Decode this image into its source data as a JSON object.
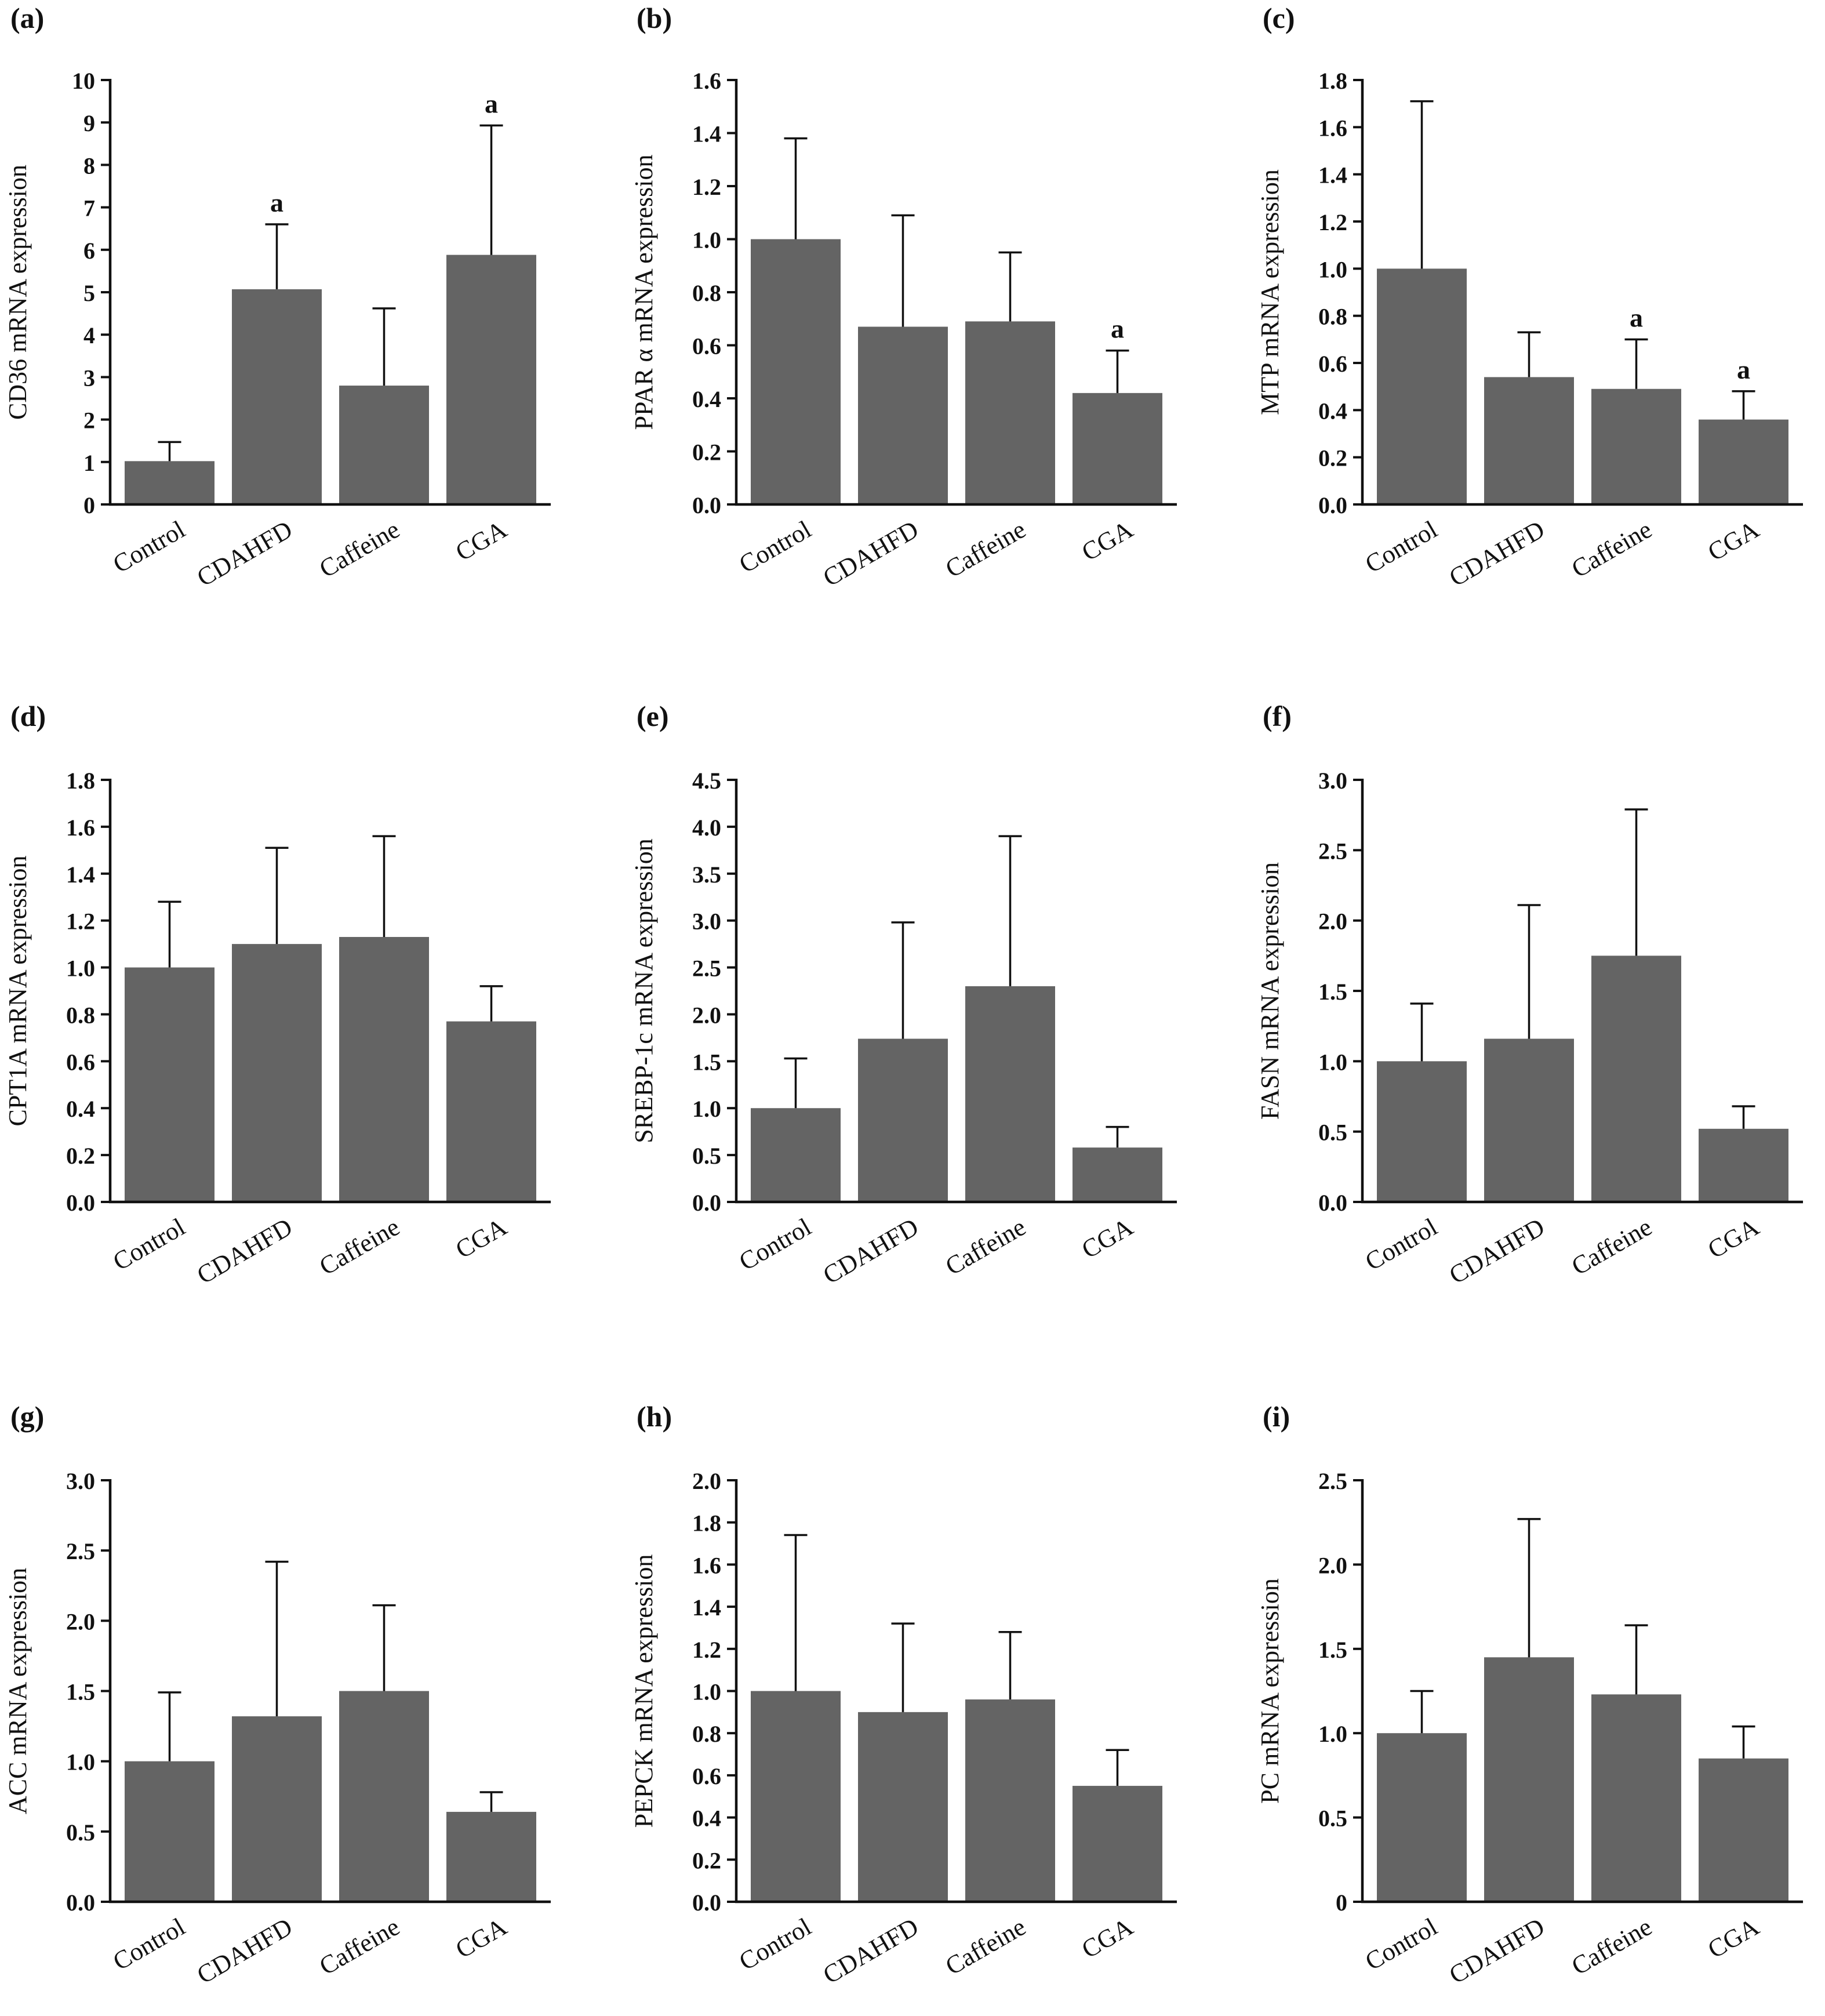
{
  "figure": {
    "bar_color": "#646464",
    "axis_color": "#111111"
  },
  "chart_data": [
    {
      "panel": "(a)",
      "type": "bar",
      "categories": [
        "Control",
        "CDAHFD",
        "Caffeine",
        "CGA"
      ],
      "values": [
        1.02,
        5.07,
        2.8,
        5.88
      ],
      "errors": [
        0.45,
        1.53,
        1.82,
        3.05
      ],
      "annotations": [
        "",
        "a",
        "",
        "a"
      ],
      "title": "",
      "xlabel": "",
      "ylabel": "CD36 mRNA expression",
      "ylim": [
        0,
        10
      ],
      "ticks": [
        0,
        1,
        2,
        3,
        4,
        5,
        6,
        7,
        8,
        9,
        10
      ],
      "tick_labels": [
        "0",
        "1",
        "2",
        "3",
        "4",
        "5",
        "6",
        "7",
        "8",
        "9",
        "10"
      ]
    },
    {
      "panel": "(b)",
      "type": "bar",
      "categories": [
        "Control",
        "CDAHFD",
        "Caffeine",
        "CGA"
      ],
      "values": [
        1.0,
        0.67,
        0.69,
        0.42
      ],
      "errors": [
        0.38,
        0.42,
        0.26,
        0.16
      ],
      "annotations": [
        "",
        "",
        "",
        "a"
      ],
      "title": "",
      "xlabel": "",
      "ylabel": "PPAR α mRNA expression",
      "ylim": [
        0,
        1.6
      ],
      "ticks": [
        0,
        0.2,
        0.4,
        0.6,
        0.8,
        1.0,
        1.2,
        1.4,
        1.6
      ],
      "tick_labels": [
        "0.0",
        "0.2",
        "0.4",
        "0.6",
        "0.8",
        "1.0",
        "1.2",
        "1.4",
        "1.6"
      ]
    },
    {
      "panel": "(c)",
      "type": "bar",
      "categories": [
        "Control",
        "CDAHFD",
        "Caffeine",
        "CGA"
      ],
      "values": [
        1.0,
        0.54,
        0.49,
        0.36
      ],
      "errors": [
        0.71,
        0.19,
        0.21,
        0.12
      ],
      "annotations": [
        "",
        "",
        "a",
        "a"
      ],
      "title": "",
      "xlabel": "",
      "ylabel": "MTP mRNA expression",
      "ylim": [
        0,
        1.8
      ],
      "ticks": [
        0,
        0.2,
        0.4,
        0.6,
        0.8,
        1.0,
        1.2,
        1.4,
        1.6,
        1.8
      ],
      "tick_labels": [
        "0.0",
        "0.2",
        "0.4",
        "0.6",
        "0.8",
        "1.0",
        "1.2",
        "1.4",
        "1.6",
        "1.8"
      ]
    },
    {
      "panel": "(d)",
      "type": "bar",
      "categories": [
        "Control",
        "CDAHFD",
        "Caffeine",
        "CGA"
      ],
      "values": [
        1.0,
        1.1,
        1.13,
        0.77
      ],
      "errors": [
        0.28,
        0.41,
        0.43,
        0.15
      ],
      "annotations": [
        "",
        "",
        "",
        ""
      ],
      "title": "",
      "xlabel": "",
      "ylabel": "CPT1A mRNA expression",
      "ylim": [
        0,
        1.8
      ],
      "ticks": [
        0,
        0.2,
        0.4,
        0.6,
        0.8,
        1.0,
        1.2,
        1.4,
        1.6,
        1.8
      ],
      "tick_labels": [
        "0.0",
        "0.2",
        "0.4",
        "0.6",
        "0.8",
        "1.0",
        "1.2",
        "1.4",
        "1.6",
        "1.8"
      ]
    },
    {
      "panel": "(e)",
      "type": "bar",
      "categories": [
        "Control",
        "CDAHFD",
        "Caffeine",
        "CGA"
      ],
      "values": [
        1.0,
        1.74,
        2.3,
        0.58
      ],
      "errors": [
        0.53,
        1.24,
        1.6,
        0.22
      ],
      "annotations": [
        "",
        "",
        "",
        ""
      ],
      "title": "",
      "xlabel": "",
      "ylabel": "SREBP-1c mRNA expression",
      "ylim": [
        0,
        4.5
      ],
      "ticks": [
        0,
        0.5,
        1.0,
        1.5,
        2.0,
        2.5,
        3.0,
        3.5,
        4.0,
        4.5
      ],
      "tick_labels": [
        "0.0",
        "0.5",
        "1.0",
        "1.5",
        "2.0",
        "2.5",
        "3.0",
        "3.5",
        "4.0",
        "4.5"
      ]
    },
    {
      "panel": "(f)",
      "type": "bar",
      "categories": [
        "Control",
        "CDAHFD",
        "Caffeine",
        "CGA"
      ],
      "values": [
        1.0,
        1.16,
        1.75,
        0.52
      ],
      "errors": [
        0.41,
        0.95,
        1.04,
        0.16
      ],
      "annotations": [
        "",
        "",
        "",
        ""
      ],
      "title": "",
      "xlabel": "",
      "ylabel": "FASN mRNA expression",
      "ylim": [
        0,
        3.0
      ],
      "ticks": [
        0,
        0.5,
        1.0,
        1.5,
        2.0,
        2.5,
        3.0
      ],
      "tick_labels": [
        "0.0",
        "0.5",
        "1.0",
        "1.5",
        "2.0",
        "2.5",
        "3.0"
      ]
    },
    {
      "panel": "(g)",
      "type": "bar",
      "categories": [
        "Control",
        "CDAHFD",
        "Caffeine",
        "CGA"
      ],
      "values": [
        1.0,
        1.32,
        1.5,
        0.64
      ],
      "errors": [
        0.49,
        1.1,
        0.61,
        0.14
      ],
      "annotations": [
        "",
        "",
        "",
        ""
      ],
      "title": "",
      "xlabel": "",
      "ylabel": "ACC mRNA expression",
      "ylim": [
        0,
        3.0
      ],
      "ticks": [
        0,
        0.5,
        1.0,
        1.5,
        2.0,
        2.5,
        3.0
      ],
      "tick_labels": [
        "0.0",
        "0.5",
        "1.0",
        "1.5",
        "2.0",
        "2.5",
        "3.0"
      ]
    },
    {
      "panel": "(h)",
      "type": "bar",
      "categories": [
        "Control",
        "CDAHFD",
        "Caffeine",
        "CGA"
      ],
      "values": [
        1.0,
        0.9,
        0.96,
        0.55
      ],
      "errors": [
        0.74,
        0.42,
        0.32,
        0.17
      ],
      "annotations": [
        "",
        "",
        "",
        ""
      ],
      "title": "",
      "xlabel": "",
      "ylabel": "PEPCK mRNA expression",
      "ylim": [
        0,
        2.0
      ],
      "ticks": [
        0,
        0.2,
        0.4,
        0.6,
        0.8,
        1.0,
        1.2,
        1.4,
        1.6,
        1.8,
        2.0
      ],
      "tick_labels": [
        "0.0",
        "0.2",
        "0.4",
        "0.6",
        "0.8",
        "1.0",
        "1.2",
        "1.4",
        "1.6",
        "1.8",
        "2.0"
      ]
    },
    {
      "panel": "(i)",
      "type": "bar",
      "categories": [
        "Control",
        "CDAHFD",
        "Caffeine",
        "CGA"
      ],
      "values": [
        1.0,
        1.45,
        1.23,
        0.85
      ],
      "errors": [
        0.25,
        0.82,
        0.41,
        0.19
      ],
      "annotations": [
        "",
        "",
        "",
        ""
      ],
      "title": "",
      "xlabel": "",
      "ylabel": "PC mRNA expression",
      "ylim": [
        0,
        2.5
      ],
      "ticks": [
        0,
        0.5,
        1.0,
        1.5,
        2.0,
        2.5
      ],
      "tick_labels": [
        "0",
        "0.5",
        "1.0",
        "1.5",
        "2.0",
        "2.5"
      ]
    }
  ]
}
